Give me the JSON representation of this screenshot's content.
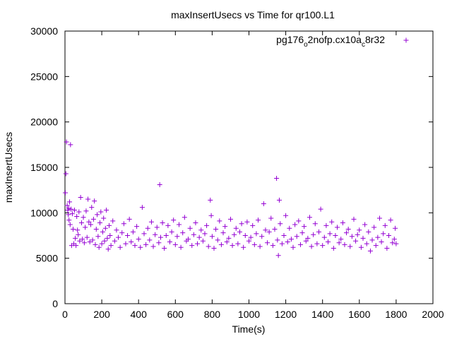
{
  "chart_data": {
    "type": "scatter",
    "title": "maxInsertUsecs vs Time for qr100.L1",
    "xlabel": "Time(s)",
    "ylabel": "maxInsertUsecs",
    "xlim": [
      0,
      2000
    ],
    "ylim": [
      0,
      30000
    ],
    "xticks": [
      "0",
      "200",
      "400",
      "600",
      "800",
      "1000",
      "1200",
      "1400",
      "1600",
      "1800",
      "2000"
    ],
    "yticks": [
      "0",
      "5000",
      "10000",
      "15000",
      "20000",
      "25000",
      "30000"
    ],
    "grid": false,
    "legend_position": "top-right",
    "marker": "plus",
    "color": "#9400d3",
    "series": [
      {
        "name": "pg176_o2nofp.cx10a_c8r32",
        "legend_parts": {
          "a": "pg176",
          "b": "o",
          "c": "2nofp.cx10a",
          "d": "c",
          "e": "8r32"
        },
        "points": [
          [
            2,
            12200
          ],
          [
            5,
            14300
          ],
          [
            8,
            17800
          ],
          [
            12,
            10800
          ],
          [
            15,
            10300
          ],
          [
            18,
            9800
          ],
          [
            20,
            10500
          ],
          [
            22,
            9200
          ],
          [
            25,
            11200
          ],
          [
            28,
            8700
          ],
          [
            30,
            17500
          ],
          [
            33,
            10400
          ],
          [
            36,
            6400
          ],
          [
            40,
            9900
          ],
          [
            44,
            8200
          ],
          [
            48,
            6600
          ],
          [
            52,
            10300
          ],
          [
            56,
            7200
          ],
          [
            60,
            6400
          ],
          [
            64,
            9600
          ],
          [
            68,
            8100
          ],
          [
            72,
            7600
          ],
          [
            76,
            10100
          ],
          [
            80,
            6900
          ],
          [
            85,
            11700
          ],
          [
            90,
            8900
          ],
          [
            95,
            7100
          ],
          [
            100,
            9500
          ],
          [
            105,
            6700
          ],
          [
            110,
            8400
          ],
          [
            115,
            10200
          ],
          [
            120,
            7300
          ],
          [
            125,
            11500
          ],
          [
            130,
            9000
          ],
          [
            135,
            6800
          ],
          [
            140,
            8700
          ],
          [
            145,
            10600
          ],
          [
            150,
            7000
          ],
          [
            155,
            9300
          ],
          [
            160,
            11300
          ],
          [
            165,
            6500
          ],
          [
            170,
            8200
          ],
          [
            175,
            9800
          ],
          [
            180,
            7400
          ],
          [
            185,
            6200
          ],
          [
            190,
            8900
          ],
          [
            195,
            10100
          ],
          [
            200,
            6600
          ],
          [
            205,
            7900
          ],
          [
            210,
            9400
          ],
          [
            215,
            6900
          ],
          [
            220,
            8300
          ],
          [
            225,
            10300
          ],
          [
            230,
            7200
          ],
          [
            235,
            6000
          ],
          [
            240,
            8600
          ],
          [
            245,
            7500
          ],
          [
            250,
            6400
          ],
          [
            260,
            9100
          ],
          [
            270,
            6900
          ],
          [
            280,
            8100
          ],
          [
            290,
            7300
          ],
          [
            300,
            6200
          ],
          [
            310,
            7800
          ],
          [
            320,
            8800
          ],
          [
            330,
            6600
          ],
          [
            340,
            7500
          ],
          [
            350,
            9300
          ],
          [
            360,
            6800
          ],
          [
            370,
            7900
          ],
          [
            380,
            6400
          ],
          [
            390,
            8500
          ],
          [
            400,
            7100
          ],
          [
            410,
            6200
          ],
          [
            420,
            10600
          ],
          [
            430,
            7700
          ],
          [
            440,
            6500
          ],
          [
            450,
            8300
          ],
          [
            460,
            7000
          ],
          [
            470,
            9000
          ],
          [
            480,
            6300
          ],
          [
            490,
            7600
          ],
          [
            500,
            8400
          ],
          [
            510,
            6700
          ],
          [
            515,
            13100
          ],
          [
            520,
            7300
          ],
          [
            530,
            8900
          ],
          [
            540,
            6100
          ],
          [
            550,
            7500
          ],
          [
            560,
            8600
          ],
          [
            570,
            6800
          ],
          [
            580,
            7900
          ],
          [
            590,
            9200
          ],
          [
            600,
            6500
          ],
          [
            610,
            7400
          ],
          [
            620,
            8700
          ],
          [
            630,
            6200
          ],
          [
            640,
            7800
          ],
          [
            650,
            9500
          ],
          [
            660,
            6900
          ],
          [
            670,
            7100
          ],
          [
            680,
            8300
          ],
          [
            690,
            6400
          ],
          [
            700,
            7600
          ],
          [
            710,
            8900
          ],
          [
            720,
            6600
          ],
          [
            730,
            7300
          ],
          [
            740,
            8100
          ],
          [
            750,
            6900
          ],
          [
            760,
            7700
          ],
          [
            770,
            8600
          ],
          [
            780,
            6300
          ],
          [
            790,
            11400
          ],
          [
            795,
            9700
          ],
          [
            800,
            7400
          ],
          [
            810,
            6100
          ],
          [
            820,
            8200
          ],
          [
            830,
            7000
          ],
          [
            840,
            9100
          ],
          [
            850,
            6500
          ],
          [
            860,
            7800
          ],
          [
            870,
            8500
          ],
          [
            880,
            6800
          ],
          [
            890,
            7200
          ],
          [
            900,
            9300
          ],
          [
            910,
            6400
          ],
          [
            920,
            7600
          ],
          [
            930,
            8300
          ],
          [
            940,
            6600
          ],
          [
            950,
            7900
          ],
          [
            960,
            8800
          ],
          [
            970,
            6200
          ],
          [
            980,
            7500
          ],
          [
            990,
            9000
          ],
          [
            1000,
            6900
          ],
          [
            1010,
            7300
          ],
          [
            1020,
            8600
          ],
          [
            1030,
            6500
          ],
          [
            1040,
            7700
          ],
          [
            1050,
            9200
          ],
          [
            1060,
            6300
          ],
          [
            1070,
            7400
          ],
          [
            1080,
            11000
          ],
          [
            1090,
            8100
          ],
          [
            1100,
            6700
          ],
          [
            1110,
            7900
          ],
          [
            1120,
            9400
          ],
          [
            1130,
            6400
          ],
          [
            1140,
            8200
          ],
          [
            1150,
            13800
          ],
          [
            1155,
            7000
          ],
          [
            1160,
            5300
          ],
          [
            1165,
            11400
          ],
          [
            1170,
            8800
          ],
          [
            1180,
            6600
          ],
          [
            1190,
            7500
          ],
          [
            1200,
            9700
          ],
          [
            1210,
            6800
          ],
          [
            1220,
            8300
          ],
          [
            1230,
            7100
          ],
          [
            1240,
            6200
          ],
          [
            1250,
            8700
          ],
          [
            1260,
            7400
          ],
          [
            1270,
            9100
          ],
          [
            1280,
            6500
          ],
          [
            1290,
            7800
          ],
          [
            1300,
            8500
          ],
          [
            1310,
            6900
          ],
          [
            1320,
            7200
          ],
          [
            1330,
            9500
          ],
          [
            1340,
            6300
          ],
          [
            1350,
            7600
          ],
          [
            1360,
            8800
          ],
          [
            1370,
            6600
          ],
          [
            1380,
            7900
          ],
          [
            1390,
            10400
          ],
          [
            1400,
            6400
          ],
          [
            1410,
            7300
          ],
          [
            1420,
            8600
          ],
          [
            1430,
            6800
          ],
          [
            1440,
            7700
          ],
          [
            1450,
            9000
          ],
          [
            1460,
            6100
          ],
          [
            1470,
            7500
          ],
          [
            1480,
            8400
          ],
          [
            1490,
            6700
          ],
          [
            1500,
            7100
          ],
          [
            1510,
            8900
          ],
          [
            1520,
            6500
          ],
          [
            1530,
            7800
          ],
          [
            1540,
            8200
          ],
          [
            1550,
            6300
          ],
          [
            1560,
            7400
          ],
          [
            1570,
            9300
          ],
          [
            1580,
            6900
          ],
          [
            1590,
            7600
          ],
          [
            1600,
            8100
          ],
          [
            1610,
            6200
          ],
          [
            1620,
            7200
          ],
          [
            1630,
            8700
          ],
          [
            1640,
            6600
          ],
          [
            1650,
            7900
          ],
          [
            1660,
            5800
          ],
          [
            1670,
            7000
          ],
          [
            1680,
            8400
          ],
          [
            1690,
            6400
          ],
          [
            1700,
            7300
          ],
          [
            1710,
            9400
          ],
          [
            1720,
            6800
          ],
          [
            1730,
            7700
          ],
          [
            1740,
            8600
          ],
          [
            1750,
            6100
          ],
          [
            1760,
            7500
          ],
          [
            1770,
            9200
          ],
          [
            1780,
            6700
          ],
          [
            1790,
            7100
          ],
          [
            1795,
            8300
          ],
          [
            1800,
            6600
          ]
        ]
      }
    ]
  }
}
